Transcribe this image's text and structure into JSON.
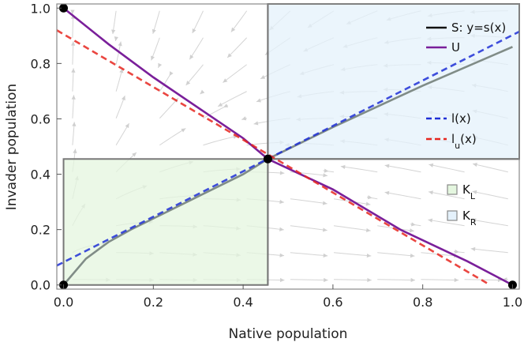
{
  "chart_data": {
    "type": "line",
    "title": "",
    "xlabel": "Native population",
    "ylabel": "Invader population",
    "xlim": [
      -0.015,
      1.015
    ],
    "ylim": [
      -0.015,
      1.015
    ],
    "x_ticks": [
      "0.0",
      "0.2",
      "0.4",
      "0.6",
      "0.8",
      "1.0"
    ],
    "y_ticks": [
      "0.0",
      "0.2",
      "0.4",
      "0.6",
      "0.8",
      "1.0"
    ],
    "fixed_point": {
      "x": 0.455,
      "y": 0.455
    },
    "regions": [
      {
        "name": "K_L",
        "x": [
          0,
          0.455
        ],
        "y": [
          0,
          0.455
        ],
        "color": "#e4f6df",
        "edge": "#777777"
      },
      {
        "name": "K_R",
        "x": [
          0.455,
          1.015
        ],
        "y": [
          0.455,
          1.015
        ],
        "color": "#e4f1fb",
        "edge": "#777777"
      }
    ],
    "series": [
      {
        "name": "S: y=s(x)",
        "color": "#808c87",
        "style": "solid",
        "x": [
          0,
          0.05,
          0.1,
          0.15,
          0.2,
          0.3,
          0.4,
          0.455,
          0.6,
          0.8,
          1.0
        ],
        "y": [
          0,
          0.095,
          0.155,
          0.2,
          0.24,
          0.32,
          0.4,
          0.455,
          0.57,
          0.72,
          0.86
        ]
      },
      {
        "name": "U",
        "color": "#7a1f9a",
        "style": "solid",
        "x": [
          0,
          0.1,
          0.2,
          0.3,
          0.4,
          0.455,
          0.6,
          0.75,
          0.9,
          1.0
        ],
        "y": [
          1.0,
          0.87,
          0.75,
          0.64,
          0.53,
          0.455,
          0.345,
          0.2,
          0.085,
          0
        ]
      },
      {
        "name": "l(x)",
        "color": "#1f2fd6",
        "style": "dashed",
        "x": [
          -0.015,
          1.015
        ],
        "y": [
          0.07,
          0.915
        ]
      },
      {
        "name": "l_u(x)",
        "color": "#e6261f",
        "style": "dashed",
        "x": [
          -0.015,
          0.95
        ],
        "y": [
          0.92,
          0
        ]
      }
    ],
    "points": [
      {
        "x": 0,
        "y": 1
      },
      {
        "x": 0,
        "y": 0
      },
      {
        "x": 0.455,
        "y": 0.455
      },
      {
        "x": 1,
        "y": 0
      }
    ]
  },
  "legend": [
    {
      "label": "S: y=s(x)",
      "color": "#111111",
      "kind": "line"
    },
    {
      "label": "U",
      "color": "#7a1f9a",
      "kind": "line"
    },
    {
      "label_main": "l",
      "label_tail": "(x)",
      "color": "#1f2fd6",
      "kind": "dash"
    },
    {
      "label_main": "l",
      "label_sub": "u",
      "label_tail": "(x)",
      "color": "#e6261f",
      "kind": "dash"
    },
    {
      "label_main": "K",
      "label_sub": "L",
      "color": "#e4f6df",
      "kind": "box"
    },
    {
      "label_main": "K",
      "label_sub": "R",
      "color": "#e4f1fb",
      "kind": "box"
    }
  ]
}
